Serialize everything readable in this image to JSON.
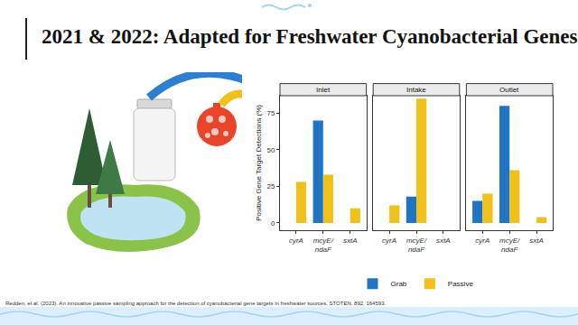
{
  "slide_title": "2021 & 2022: Adapted for Freshwater Cyanobacterial Genes",
  "citation": "Redden, et al. (2023). An innovative passive sampling approach for the detection of cyanobacterial gene targets in freshwater sources. STOTEN. 892, 164593.",
  "chart_data": [
    {
      "type": "bar",
      "title": "Inlet",
      "categories": [
        "cyrA",
        "mcyE/ndaF",
        "sxtA"
      ],
      "series": [
        {
          "name": "Grab",
          "color": "#1f74c4",
          "values": [
            0,
            70,
            0
          ]
        },
        {
          "name": "Passive",
          "color": "#f0c01c",
          "values": [
            28,
            33,
            10
          ]
        }
      ],
      "ylabel": "Positive Gene Target Detections (%)",
      "ylim": [
        -5,
        87
      ],
      "yticks": [
        0,
        25,
        50,
        75
      ],
      "grid": false,
      "legend": "bottom"
    },
    {
      "type": "bar",
      "title": "Intake",
      "categories": [
        "cyrA",
        "mcyE/ndaF",
        "sxtA"
      ],
      "series": [
        {
          "name": "Grab",
          "color": "#1f74c4",
          "values": [
            0,
            18,
            0
          ]
        },
        {
          "name": "Passive",
          "color": "#f0c01c",
          "values": [
            12,
            85,
            0
          ]
        }
      ],
      "ylim": [
        -5,
        87
      ],
      "yticks": [
        0,
        25,
        50,
        75
      ],
      "grid": false,
      "tick_labels": "x"
    },
    {
      "type": "bar",
      "title": "Outlet",
      "categories": [
        "cyrA",
        "mcyE/ndaF",
        "sxtA"
      ],
      "series": [
        {
          "name": "Grab",
          "color": "#1f74c4",
          "values": [
            15,
            80,
            0
          ]
        },
        {
          "name": "Passive",
          "color": "#f0c01c",
          "values": [
            20,
            36,
            4
          ]
        }
      ],
      "ylim": [
        -5,
        87
      ],
      "yticks": [
        0,
        25,
        50,
        75
      ],
      "grid": false,
      "tick_labels": "x"
    }
  ]
}
